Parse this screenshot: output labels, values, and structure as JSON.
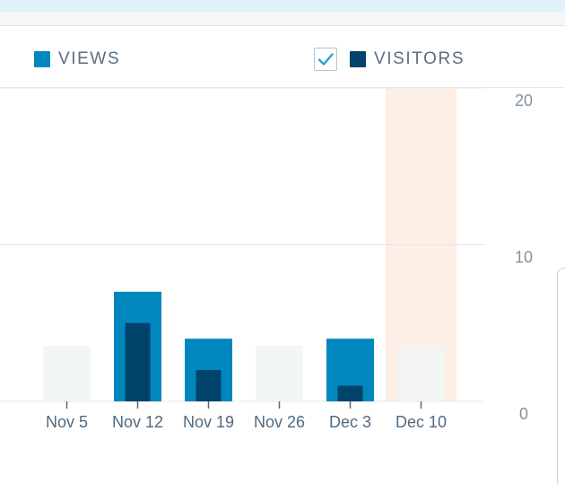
{
  "legend": {
    "views_label": "VIEWS",
    "visitors_label": "VISITORS",
    "visitors_checked": true
  },
  "colors": {
    "views": "#0087be",
    "visitors": "#00436b",
    "highlight": "#fdeee6",
    "empty_bar": "#f1f4f6",
    "grid": "#e2e8ed",
    "checkmark": "#2ea2cc"
  },
  "chart_data": {
    "type": "bar",
    "categories": [
      "Nov 5",
      "Nov 12",
      "Nov 19",
      "Nov 26",
      "Dec 3",
      "Dec 10"
    ],
    "series": [
      {
        "name": "VIEWS",
        "values": [
          0,
          7,
          4,
          0,
          4,
          0
        ]
      },
      {
        "name": "VISITORS",
        "values": [
          0,
          5,
          2,
          0,
          1,
          0
        ]
      }
    ],
    "y_ticks": [
      "20",
      "10",
      "0"
    ],
    "ylim": [
      0,
      20
    ],
    "highlighted_category": "Dec 10",
    "grid": true,
    "legend_position": "top"
  }
}
